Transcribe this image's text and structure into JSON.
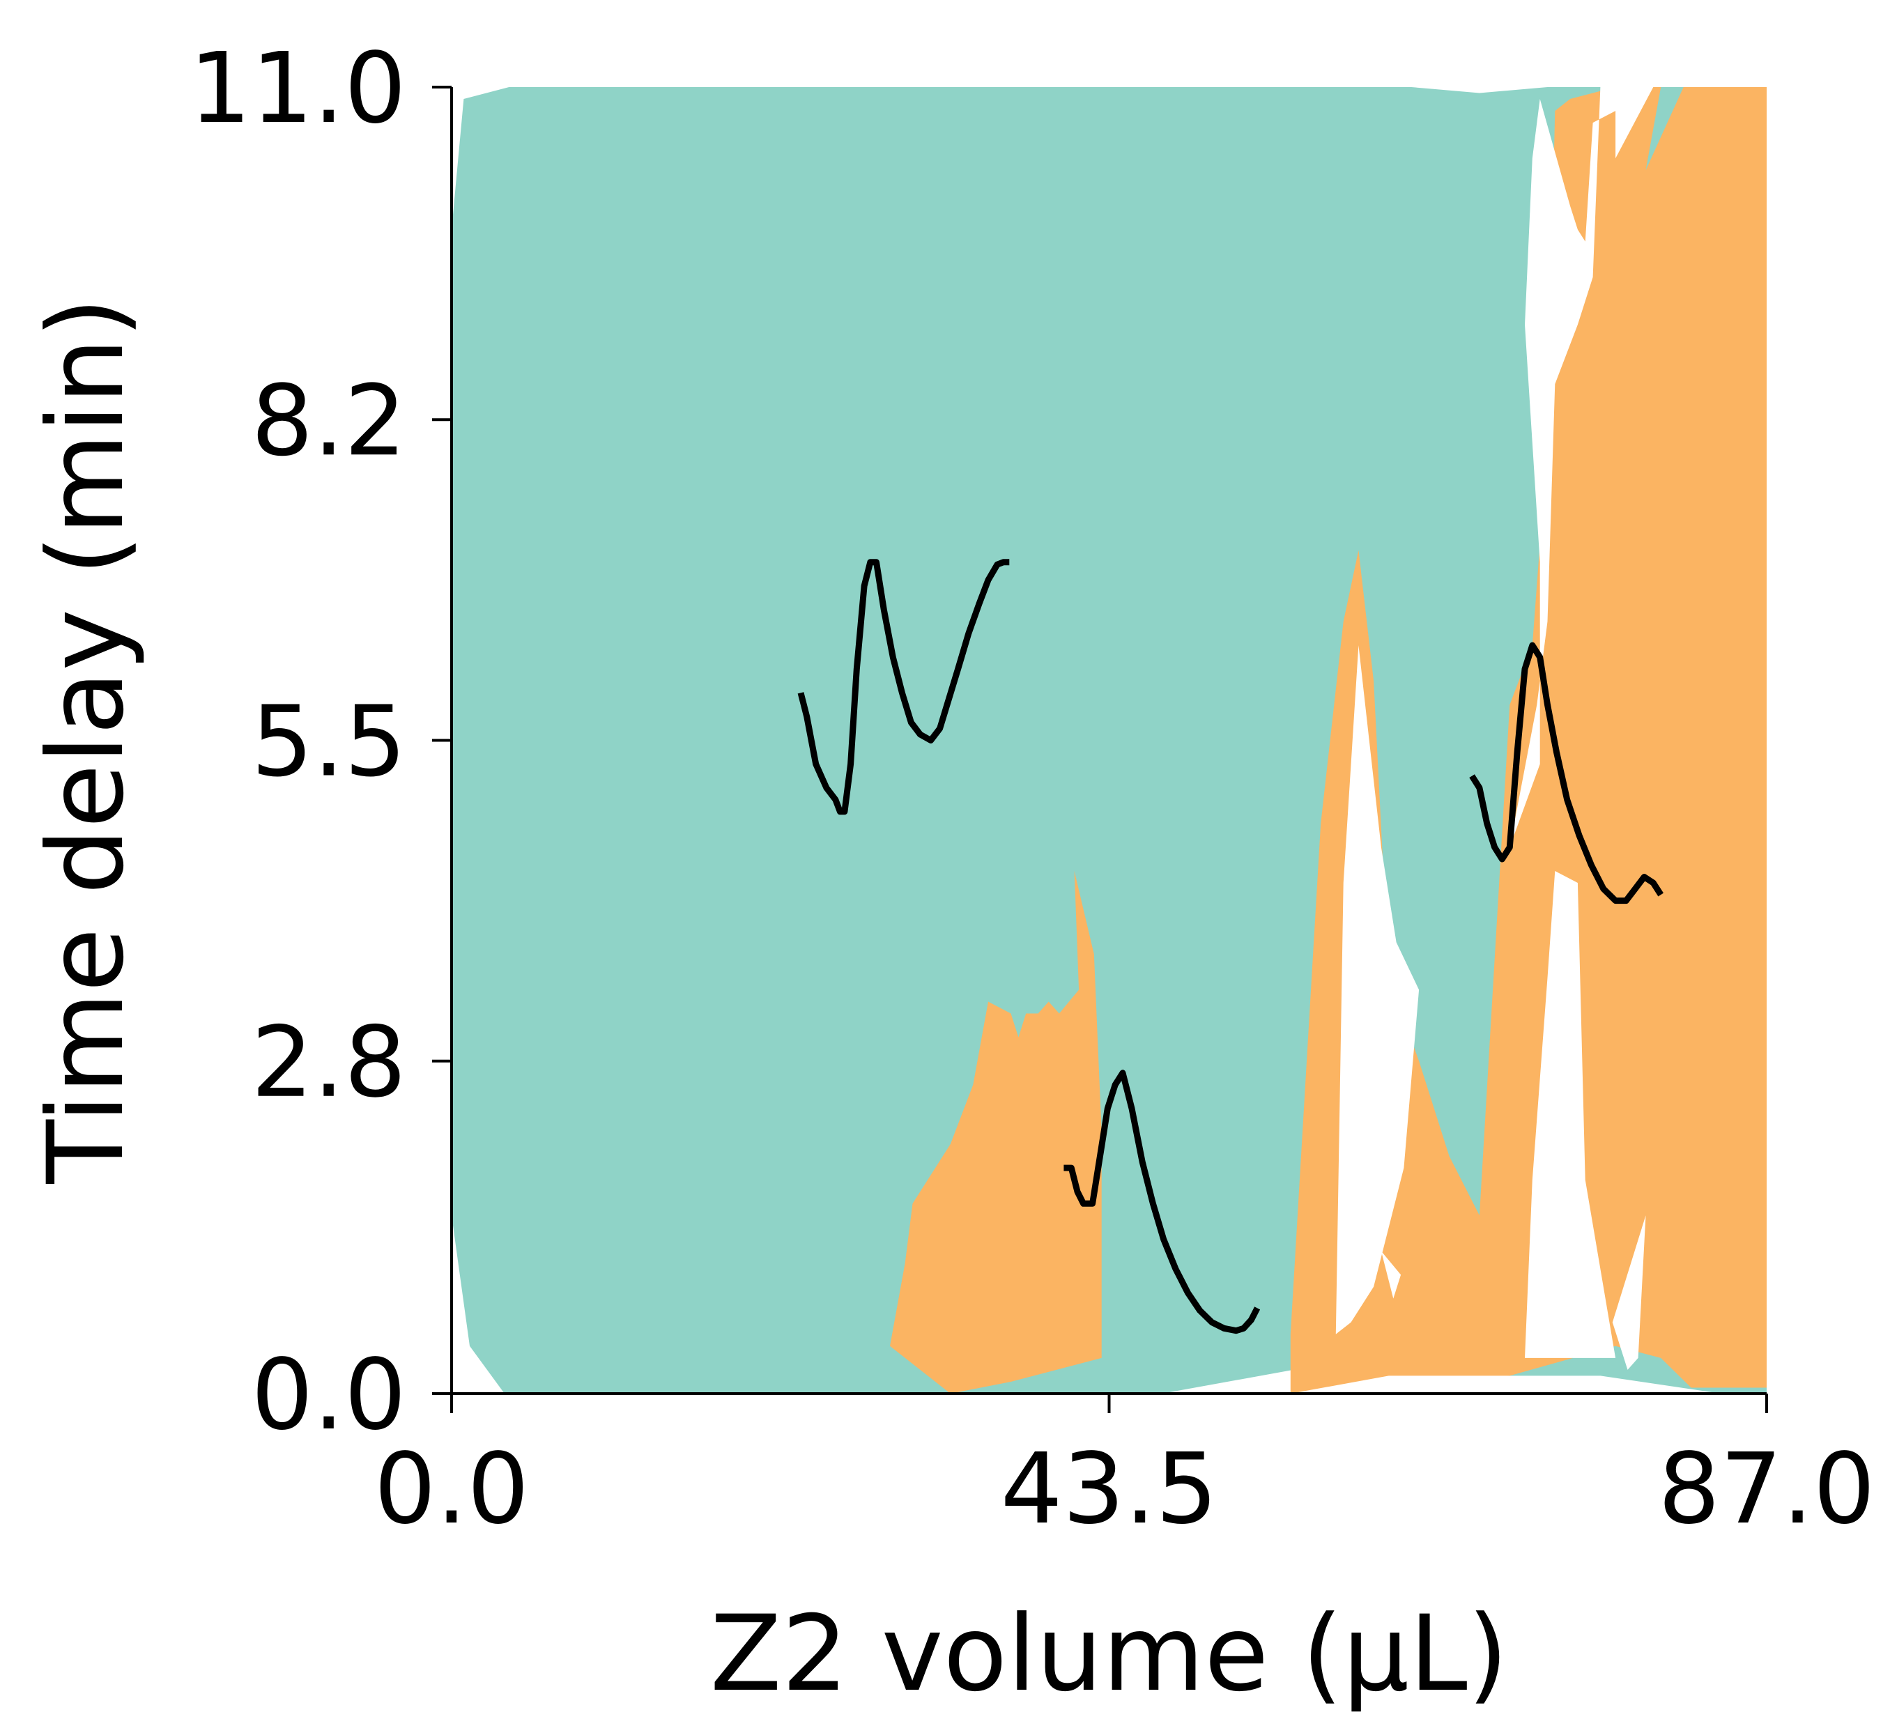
{
  "chart_data": {
    "type": "area",
    "title": "",
    "xlabel": "Z2 volume (μL)",
    "ylabel": "Time delay (min)",
    "xlim": [
      0.0,
      87.0
    ],
    "ylim": [
      0.0,
      11.0
    ],
    "x_ticks": [
      "0.0",
      "43.5",
      "87.0"
    ],
    "y_ticks": [
      "0.0",
      "2.8",
      "5.5",
      "8.2",
      "11.0"
    ],
    "grid": false,
    "legend": "none",
    "colors": {
      "region_a": "#8fd3c7",
      "region_b": "#fbb462",
      "background": "#ffffff",
      "trace": "#000000"
    },
    "regions": [
      {
        "color_key": "region_a",
        "polygons": [
          [
            [
              0.0,
              9.8
            ],
            [
              0.8,
              10.9
            ],
            [
              3.8,
              11.0
            ],
            [
              63.5,
              11.0
            ],
            [
              68.0,
              10.95
            ],
            [
              72.5,
              11.0
            ],
            [
              81.0,
              11.0
            ],
            [
              85.0,
              11.0
            ],
            [
              87.0,
              11.0
            ],
            [
              87.0,
              0.0
            ],
            [
              84.0,
              0.0
            ],
            [
              76.0,
              0.15
            ],
            [
              70.0,
              0.15
            ],
            [
              60.0,
              0.3
            ],
            [
              47.0,
              0.0
            ],
            [
              3.5,
              0.0
            ],
            [
              1.2,
              0.4
            ],
            [
              0.0,
              1.5
            ]
          ]
        ]
      },
      {
        "color_key": "region_b",
        "polygons": [
          [
            [
              29.0,
              0.4
            ],
            [
              30.0,
              1.1
            ],
            [
              30.5,
              1.6
            ],
            [
              33.0,
              2.1
            ],
            [
              34.5,
              2.6
            ],
            [
              35.5,
              3.3
            ],
            [
              37.0,
              3.2
            ],
            [
              37.5,
              3.0
            ],
            [
              38.0,
              3.2
            ],
            [
              38.8,
              3.2
            ],
            [
              39.5,
              3.3
            ],
            [
              40.2,
              3.2
            ],
            [
              41.5,
              3.4
            ],
            [
              41.2,
              4.4
            ],
            [
              42.5,
              3.7
            ],
            [
              43.0,
              2.2
            ],
            [
              43.0,
              0.3
            ],
            [
              37.0,
              0.1
            ],
            [
              33.0,
              0.0
            ]
          ],
          [
            [
              55.5,
              0.5
            ],
            [
              57.5,
              4.8
            ],
            [
              59.0,
              6.5
            ],
            [
              60.0,
              7.1
            ],
            [
              61.0,
              6.0
            ],
            [
              62.0,
              3.5
            ],
            [
              64.0,
              2.8
            ],
            [
              66.0,
              2.0
            ],
            [
              68.0,
              1.5
            ],
            [
              70.0,
              5.8
            ],
            [
              71.5,
              6.3
            ],
            [
              72.5,
              8.0
            ],
            [
              73.0,
              10.8
            ],
            [
              74.0,
              10.9
            ],
            [
              77.0,
              11.0
            ],
            [
              80.0,
              11.0
            ],
            [
              79.0,
              10.3
            ],
            [
              81.5,
              11.0
            ],
            [
              85.0,
              11.0
            ],
            [
              87.0,
              11.0
            ],
            [
              87.0,
              0.05
            ],
            [
              82.0,
              0.05
            ],
            [
              80.0,
              0.3
            ],
            [
              77.0,
              0.4
            ],
            [
              70.0,
              0.15
            ],
            [
              62.0,
              0.15
            ],
            [
              55.5,
              0.0
            ]
          ]
        ]
      },
      {
        "color_key": "background",
        "polygons": [
          [
            [
              58.5,
              0.5
            ],
            [
              59.0,
              4.3
            ],
            [
              60.0,
              6.3
            ],
            [
              61.5,
              4.6
            ],
            [
              62.5,
              3.8
            ],
            [
              64.0,
              3.4
            ],
            [
              63.0,
              1.9
            ],
            [
              61.0,
              0.9
            ],
            [
              59.5,
              0.6
            ]
          ],
          [
            [
              70.0,
              4.6
            ],
            [
              72.0,
              5.3
            ],
            [
              72.0,
              7.0
            ],
            [
              71.0,
              9.0
            ],
            [
              71.5,
              10.4
            ],
            [
              72.0,
              10.9
            ],
            [
              74.0,
              10.0
            ],
            [
              74.5,
              9.8
            ],
            [
              75.0,
              9.7
            ],
            [
              75.5,
              10.7
            ],
            [
              77.0,
              10.8
            ],
            [
              77.0,
              10.4
            ],
            [
              79.5,
              11.0
            ],
            [
              80.0,
              11.0
            ],
            [
              76.0,
              11.0
            ],
            [
              75.5,
              9.4
            ],
            [
              74.5,
              9.0
            ],
            [
              73.0,
              8.5
            ],
            [
              72.5,
              6.5
            ],
            [
              71.8,
              5.8
            ]
          ],
          [
            [
              71.0,
              0.3
            ],
            [
              71.5,
              1.8
            ],
            [
              72.5,
              3.5
            ],
            [
              73.0,
              4.4
            ],
            [
              74.5,
              4.3
            ],
            [
              75.0,
              1.8
            ],
            [
              77.0,
              0.3
            ]
          ],
          [
            [
              76.8,
              0.6
            ],
            [
              79.0,
              1.5
            ],
            [
              78.5,
              0.3
            ],
            [
              77.8,
              0.2
            ]
          ],
          [
            [
              61.5,
              1.2
            ],
            [
              62.3,
              0.8
            ],
            [
              62.8,
              1.0
            ]
          ]
        ]
      }
    ],
    "traces": [
      {
        "points": [
          [
            23.1,
            5.9
          ],
          [
            23.5,
            5.7
          ],
          [
            24.1,
            5.3
          ],
          [
            24.8,
            5.1
          ],
          [
            25.4,
            5.0
          ],
          [
            25.7,
            4.9
          ],
          [
            26.0,
            4.9
          ],
          [
            26.4,
            5.3
          ],
          [
            26.8,
            6.1
          ],
          [
            27.3,
            6.8
          ],
          [
            27.7,
            7.0
          ],
          [
            28.1,
            7.0
          ],
          [
            28.6,
            6.6
          ],
          [
            29.2,
            6.2
          ],
          [
            29.8,
            5.9
          ],
          [
            30.4,
            5.65
          ],
          [
            31.0,
            5.55
          ],
          [
            31.7,
            5.5
          ],
          [
            32.3,
            5.6
          ],
          [
            32.9,
            5.85
          ],
          [
            33.5,
            6.1
          ],
          [
            34.2,
            6.4
          ],
          [
            34.9,
            6.65
          ],
          [
            35.5,
            6.85
          ],
          [
            36.1,
            6.98
          ],
          [
            36.5,
            7.0
          ],
          [
            36.9,
            7.0
          ]
        ]
      },
      {
        "points": [
          [
            40.5,
            1.9
          ],
          [
            41.0,
            1.9
          ],
          [
            41.4,
            1.7
          ],
          [
            41.8,
            1.6
          ],
          [
            42.4,
            1.6
          ],
          [
            42.9,
            2.0
          ],
          [
            43.4,
            2.4
          ],
          [
            43.9,
            2.6
          ],
          [
            44.4,
            2.7
          ],
          [
            45.0,
            2.4
          ],
          [
            45.7,
            1.95
          ],
          [
            46.4,
            1.6
          ],
          [
            47.1,
            1.3
          ],
          [
            47.9,
            1.05
          ],
          [
            48.7,
            0.85
          ],
          [
            49.5,
            0.7
          ],
          [
            50.3,
            0.6
          ],
          [
            51.1,
            0.55
          ],
          [
            51.9,
            0.53
          ],
          [
            52.4,
            0.55
          ],
          [
            52.9,
            0.62
          ],
          [
            53.3,
            0.72
          ]
        ]
      },
      {
        "points": [
          [
            67.5,
            5.2
          ],
          [
            68.0,
            5.1
          ],
          [
            68.5,
            4.8
          ],
          [
            69.0,
            4.6
          ],
          [
            69.5,
            4.5
          ],
          [
            70.0,
            4.6
          ],
          [
            70.5,
            5.4
          ],
          [
            71.0,
            6.1
          ],
          [
            71.5,
            6.3
          ],
          [
            72.0,
            6.2
          ],
          [
            72.5,
            5.8
          ],
          [
            73.1,
            5.4
          ],
          [
            73.8,
            5.0
          ],
          [
            74.6,
            4.7
          ],
          [
            75.4,
            4.45
          ],
          [
            76.2,
            4.25
          ],
          [
            77.0,
            4.15
          ],
          [
            77.7,
            4.15
          ],
          [
            78.3,
            4.25
          ],
          [
            78.9,
            4.35
          ],
          [
            79.5,
            4.3
          ],
          [
            80.0,
            4.2
          ]
        ]
      }
    ]
  }
}
